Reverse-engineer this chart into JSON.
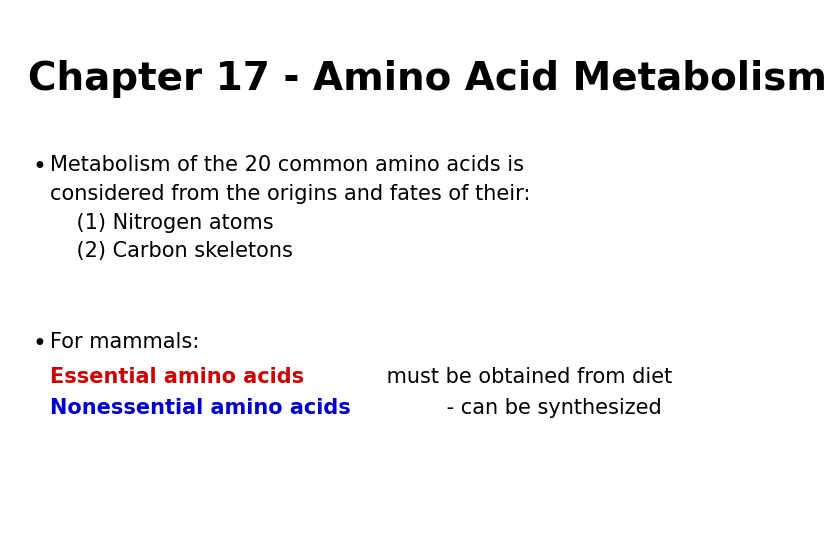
{
  "background_color": "#ffffff",
  "title": "Chapter 17 - Amino Acid Metabolism",
  "title_fontsize": 28,
  "title_fontweight": "bold",
  "title_color": "#000000",
  "bullet1_line1": "Metabolism of the 20 common amino acids is",
  "bullet1_line2": "considered from the origins and fates of their:",
  "bullet1_line3": "    (1) Nitrogen atoms",
  "bullet1_line4": "    (2) Carbon skeletons",
  "bullet2_line1": "For mammals:",
  "essential_label": "Essential amino acids",
  "essential_suffix": " must be obtained from diet",
  "essential_color": "#cc0000",
  "nonessential_label": "Nonessential amino acids",
  "nonessential_suffix": " - can be synthesized",
  "nonessential_color": "#0000cc",
  "body_fontsize": 15,
  "body_color": "#000000",
  "dot_char": "•"
}
